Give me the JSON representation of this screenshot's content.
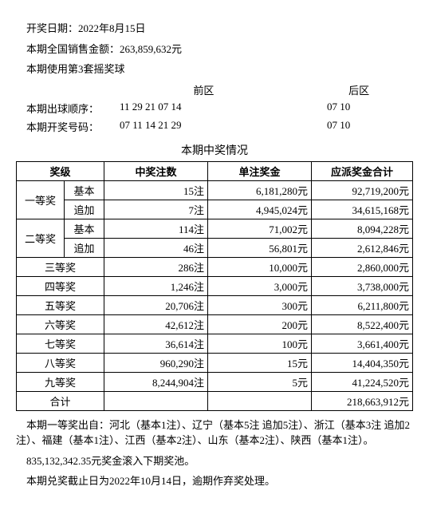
{
  "header": {
    "date_line": "开奖日期：2022年8月15日",
    "sales_line": "本期全国销售金额：263,859,632元",
    "ballset_line": "本期使用第3套摇奖球"
  },
  "zones": {
    "front_label": "前区",
    "back_label": "后区"
  },
  "draw": {
    "order_label": "本期出球顺序：",
    "order_front": "11 29 21 07 14",
    "order_back": "07 10",
    "result_label": "本期开奖号码：",
    "result_front": "07 11 14 21 29",
    "result_back": "07 10"
  },
  "table": {
    "title": "本期中奖情况",
    "head": {
      "level": "奖级",
      "count": "中奖注数",
      "unit": "单注奖金",
      "total": "应派奖金合计"
    },
    "rows": [
      {
        "l1": "一等奖",
        "l2": "基本",
        "count": "15注",
        "unit": "6,181,280元",
        "total": "92,719,200元",
        "rowspan": 2
      },
      {
        "l1": "",
        "l2": "追加",
        "count": "7注",
        "unit": "4,945,024元",
        "total": "34,615,168元"
      },
      {
        "l1": "二等奖",
        "l2": "基本",
        "count": "114注",
        "unit": "71,002元",
        "total": "8,094,228元",
        "rowspan": 2
      },
      {
        "l1": "",
        "l2": "追加",
        "count": "46注",
        "unit": "56,801元",
        "total": "2,612,846元"
      },
      {
        "l1s": "三等奖",
        "count": "286注",
        "unit": "10,000元",
        "total": "2,860,000元"
      },
      {
        "l1s": "四等奖",
        "count": "1,246注",
        "unit": "3,000元",
        "total": "3,738,000元"
      },
      {
        "l1s": "五等奖",
        "count": "20,706注",
        "unit": "300元",
        "total": "6,211,800元"
      },
      {
        "l1s": "六等奖",
        "count": "42,612注",
        "unit": "200元",
        "total": "8,522,400元"
      },
      {
        "l1s": "七等奖",
        "count": "36,614注",
        "unit": "100元",
        "total": "3,661,400元"
      },
      {
        "l1s": "八等奖",
        "count": "960,290注",
        "unit": "15元",
        "total": "14,404,350元"
      },
      {
        "l1s": "九等奖",
        "count": "8,244,904注",
        "unit": "5元",
        "total": "41,224,520元"
      },
      {
        "l1s": "合计",
        "count": "",
        "unit": "",
        "total": "218,663,912元"
      }
    ]
  },
  "footer": {
    "winners_line": "本期一等奖出自：河北（基本1注）、辽宁（基本5注 追加5注）、浙江（基本3注 追加2注）、福建（基本1注）、江西（基本2注）、山东（基本2注）、陕西（基本1注）。",
    "rollover_line": "835,132,342.35元奖金滚入下期奖池。",
    "deadline_line": "本期兑奖截止日为2022年10月14日，逾期作弃奖处理。"
  }
}
